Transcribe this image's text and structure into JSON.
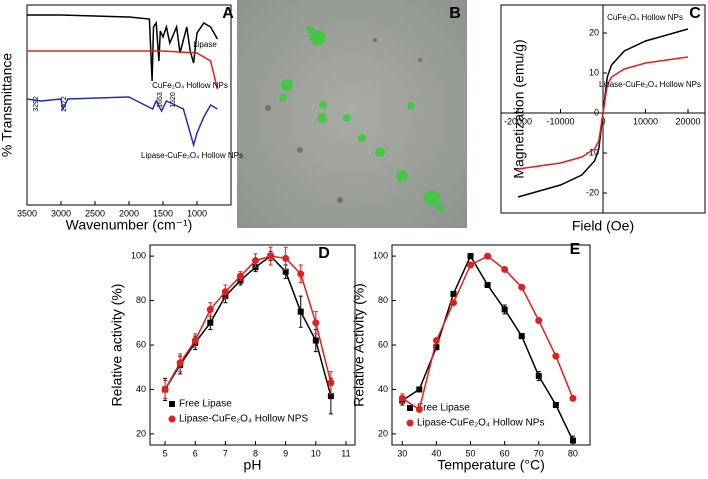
{
  "chart_data": [
    {
      "type": "line",
      "label": "A",
      "xlabel": "Wavenumber (cm⁻¹)",
      "ylabel": "% Transmittance",
      "xlim": [
        3500,
        500
      ],
      "xticks": [
        3500,
        3000,
        2500,
        2000,
        1500,
        1000
      ],
      "ylim": [
        0,
        100
      ],
      "annotations": [
        "3292",
        "2972",
        "1653",
        "1520"
      ],
      "series": [
        {
          "name": "Lipase",
          "color": "#000000",
          "x": [
            3500,
            3000,
            2000,
            1700,
            1660,
            1640,
            1600,
            1560,
            1540,
            1500,
            1450,
            1400,
            1300,
            1250,
            1150,
            1100,
            1050,
            1000,
            900,
            800,
            700
          ],
          "values": [
            95,
            95,
            94,
            93,
            62,
            89,
            91,
            72,
            87,
            84,
            89,
            81,
            89,
            76,
            89,
            77,
            71,
            86,
            91,
            89,
            83
          ]
        },
        {
          "name": "CuFe₂O₄ Hollow NPs",
          "color": "#e02020",
          "x": [
            3500,
            3000,
            2000,
            1500,
            1000,
            800,
            700
          ],
          "values": [
            77,
            77,
            77,
            77,
            76,
            72,
            58
          ]
        },
        {
          "name": "Lipase-CuFe₂O₄ Hollow NPs",
          "color": "#2030b0",
          "x": [
            3500,
            3292,
            3000,
            2972,
            2900,
            2000,
            1653,
            1600,
            1520,
            1450,
            1200,
            1050,
            1000,
            900,
            800,
            700
          ],
          "values": [
            53,
            52,
            53,
            48,
            53,
            54,
            48,
            52,
            47,
            52,
            48,
            30,
            36,
            44,
            50,
            48
          ]
        }
      ]
    },
    {
      "type": "image",
      "label": "B"
    },
    {
      "type": "line",
      "label": "C",
      "xlabel": "Field (Oe)",
      "ylabel": "Magnetization (emu/g)",
      "xlim": [
        -24000,
        24000
      ],
      "xticks": [
        -20000,
        -10000,
        0,
        10000,
        20000
      ],
      "ylim": [
        -25,
        27
      ],
      "yticks": [
        -20,
        -10,
        0,
        10,
        20
      ],
      "series": [
        {
          "name": "CuFe₂O₄ Hollow NPs",
          "color": "#000000",
          "x": [
            -20000,
            -15000,
            -10000,
            -5000,
            -2000,
            -1000,
            0,
            1000,
            2000,
            5000,
            10000,
            15000,
            20000
          ],
          "values": [
            -21,
            -19.5,
            -18,
            -15.5,
            -12,
            -9,
            0,
            9,
            12,
            15.5,
            18,
            19.5,
            21
          ]
        },
        {
          "name": "Lipase-CuFe₂O₄ Hollow NPs",
          "color": "#e02020",
          "x": [
            -20000,
            -10000,
            -5000,
            -2000,
            -1000,
            0,
            1000,
            2000,
            5000,
            10000,
            20000
          ],
          "values": [
            -14,
            -12.5,
            -11,
            -9,
            -7,
            0,
            7,
            9,
            11,
            12.5,
            14
          ]
        }
      ]
    },
    {
      "type": "line",
      "label": "D",
      "xlabel": "pH",
      "ylabel": "Relative activity (%)",
      "xlim": [
        4.5,
        11.3
      ],
      "xticks": [
        5,
        6,
        7,
        8,
        9,
        10,
        11
      ],
      "ylim": [
        15,
        105
      ],
      "yticks": [
        20,
        40,
        60,
        80,
        100
      ],
      "x": [
        5,
        5.5,
        6,
        6.5,
        7,
        7.5,
        8,
        8.5,
        9,
        9.5,
        10,
        10.5
      ],
      "series": [
        {
          "name": "Free Lipase",
          "color": "#000000",
          "marker": "square",
          "values": [
            40,
            51,
            61,
            70,
            82,
            89,
            95,
            100,
            93,
            75,
            62,
            37
          ],
          "errors": [
            5,
            4,
            3,
            3,
            3,
            2,
            2,
            2,
            3,
            7,
            5,
            8
          ]
        },
        {
          "name": "Lipase-CuFe₂O₄ Hollow NPS",
          "color": "#e02020",
          "marker": "circle",
          "values": [
            40,
            52,
            62,
            76,
            84,
            91,
            98,
            100,
            99,
            92,
            70,
            43
          ],
          "errors": [
            4,
            4,
            3,
            3,
            3,
            2,
            3,
            4,
            5,
            4,
            5,
            5
          ]
        }
      ]
    },
    {
      "type": "line",
      "label": "E",
      "xlabel": "Temperature (°C)",
      "ylabel": "Relative Activity (%)",
      "xlim": [
        27,
        85
      ],
      "xticks": [
        30,
        40,
        50,
        60,
        70,
        80
      ],
      "ylim": [
        15,
        105
      ],
      "yticks": [
        20,
        40,
        60,
        80,
        100
      ],
      "x": [
        30,
        35,
        40,
        45,
        50,
        55,
        60,
        65,
        70,
        75,
        80
      ],
      "series": [
        {
          "name": "Free Lipase",
          "color": "#000000",
          "marker": "square",
          "values": [
            35,
            40,
            59,
            83,
            100,
            87,
            76,
            64,
            46,
            33,
            17
          ],
          "errors": [
            2,
            1,
            1,
            1,
            1,
            1,
            2,
            1,
            2,
            1,
            2
          ]
        },
        {
          "name": "Lipase-CuFe₂O₄ Hollow NPs",
          "color": "#e02020",
          "marker": "circle",
          "values": [
            36,
            31,
            62,
            79,
            96,
            100,
            94,
            86,
            71,
            55,
            36
          ],
          "errors": [
            2,
            1,
            1,
            1,
            1,
            1,
            1,
            1,
            1,
            1,
            1
          ]
        }
      ]
    }
  ]
}
